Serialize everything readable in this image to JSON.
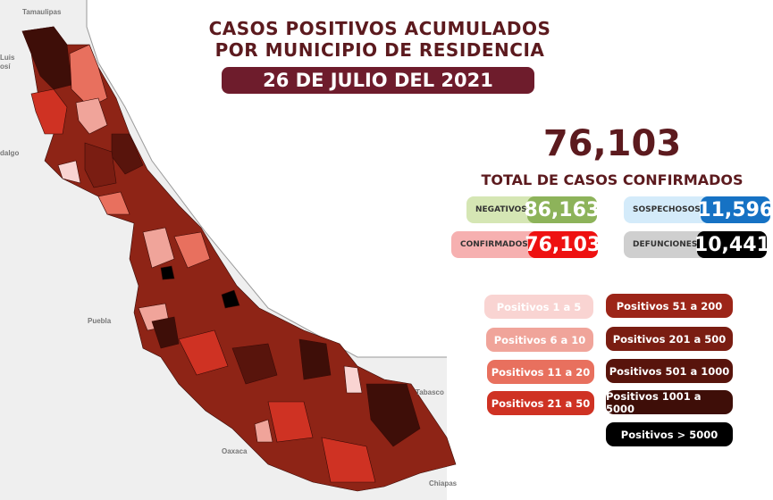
{
  "header": {
    "title_line1": "CASOS POSITIVOS ACUMULADOS",
    "title_line2": "POR MUNICIPIO DE RESIDENCIA",
    "date": "26 DE JULIO DEL 2021"
  },
  "summary": {
    "total": "76,103",
    "total_label": "TOTAL DE CASOS CONFIRMADOS"
  },
  "stats": [
    {
      "label": "NEGATIVOS",
      "value": "86,163",
      "color": "#8db35a",
      "bg": "#d5e6b4"
    },
    {
      "label": "SOSPECHOSOS",
      "value": "11,596",
      "color": "#1672c4",
      "bg": "#d4ebfa"
    },
    {
      "label": "CONFIRMADOS",
      "value": "76,103",
      "color": "#ee1111",
      "bg": "#f6b0b0"
    },
    {
      "label": "DEFUNCIONES",
      "value": "10,441",
      "color": "#000000",
      "bg": "#cfcfcf"
    }
  ],
  "legend": [
    {
      "label": "Positivos 1 a 5",
      "color": "#f9d4d2"
    },
    {
      "label": "Positivos 6 a 10",
      "color": "#f0a49a"
    },
    {
      "label": "Positivos 11 a 20",
      "color": "#e8705e"
    },
    {
      "label": "Positivos 21 a 50",
      "color": "#cf3223"
    },
    {
      "label": "Positivos 51 a 200",
      "color": "#9c2518"
    },
    {
      "label": "Positivos 201 a 500",
      "color": "#7a1d12"
    },
    {
      "label": "Positivos 501 a 1000",
      "color": "#58140c"
    },
    {
      "label": "Positivos 1001 a 5000",
      "color": "#3e0e08"
    },
    {
      "label": "Positivos > 5000",
      "color": "#000000"
    }
  ],
  "map": {
    "labels": [
      "Tamaulipas",
      "Luis",
      "osí",
      "dalgo",
      "Puebla",
      "Oaxaca",
      "Tabasco",
      "Chiapas"
    ]
  }
}
